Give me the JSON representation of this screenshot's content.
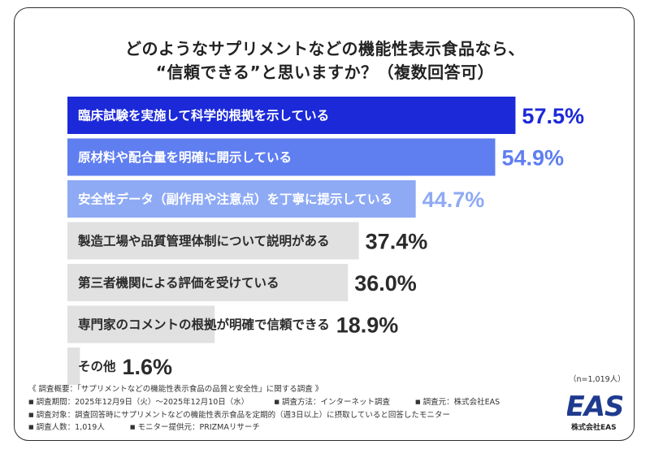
{
  "title": {
    "line1": "どのようなサプリメントなどの機能性表示食品なら、",
    "line2": "“信頼できる”と思いますか？（複数回答可）"
  },
  "chart_data": {
    "type": "bar",
    "orientation": "horizontal",
    "categories": [
      "臨床試験を実施して科学的根拠を示している",
      "原材料や配合量を明確に開示している",
      "安全性データ（副作用や注意点）を丁寧に提示している",
      "製造工場や品質管理体制について説明がある",
      "第三者機関による評価を受けている",
      "専門家のコメントの根拠が明確で信頼できる",
      "その他"
    ],
    "values": [
      57.5,
      54.9,
      44.7,
      37.4,
      36.0,
      18.9,
      1.6
    ],
    "value_labels": [
      "57.5%",
      "54.9%",
      "44.7%",
      "37.4%",
      "36.0%",
      "18.9%",
      "1.6%"
    ],
    "bar_colors": [
      "#1c29d8",
      "#5f7ef0",
      "#8eaaf5",
      "#e1e1e1",
      "#e1e1e1",
      "#e1e1e1",
      "#e1e1e1"
    ],
    "label_colors": [
      "#ffffff",
      "#ffffff",
      "#ffffff",
      "#2b2b2b",
      "#2b2b2b",
      "#2b2b2b",
      "#2b2b2b"
    ],
    "value_colors": [
      "#1c29d8",
      "#5f7ef0",
      "#8eaaf5",
      "#2b2b2b",
      "#2b2b2b",
      "#2b2b2b",
      "#2b2b2b"
    ],
    "xlim": [
      0,
      100
    ],
    "title": "どのようなサプリメントなどの機能性表示食品なら、“信頼できる”と思いますか？（複数回答可）"
  },
  "sample_size": "（n=1,019人）",
  "footer": {
    "overview": "《 調査概要：「サプリメントなどの機能性表示食品の品質と安全性」に関する調査 》",
    "period": "調査期間：2025年12月9日（火）～2025年12月10日（水）",
    "method": "調査方法：インターネット調査",
    "source": "調査元：株式会社EAS",
    "target": "調査対象：調査回答時にサプリメントなどの機能性表示食品を定期的（週3日以上）に摂取していると回答したモニター",
    "count": "調査人数：1,019人",
    "provider": "モニター提供元：PRIZMAリサーチ",
    "bullet": "■"
  },
  "logo": {
    "text": "EAS",
    "company": "株式会社EAS",
    "color": "#1f3b8f"
  }
}
